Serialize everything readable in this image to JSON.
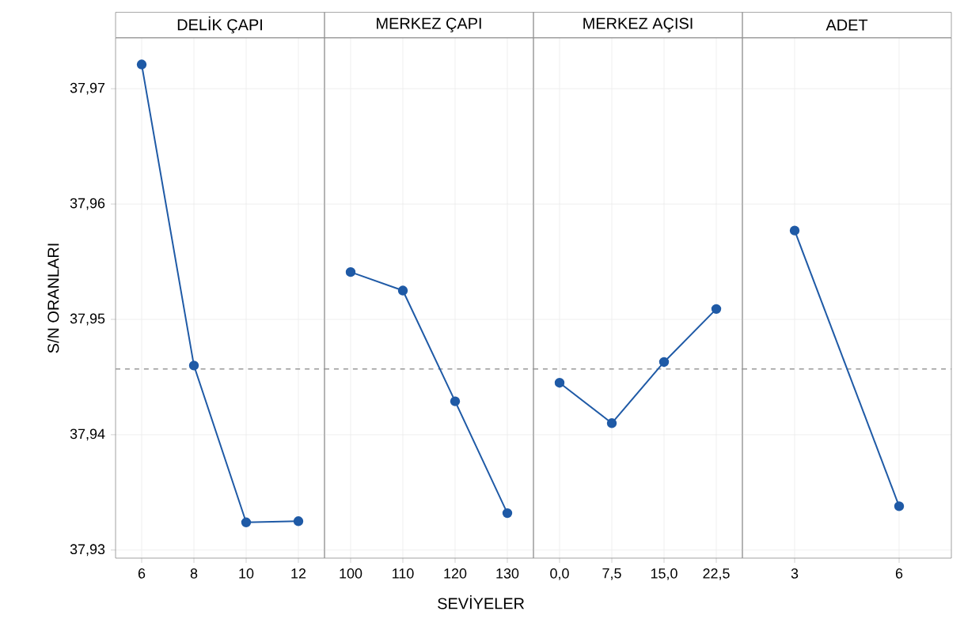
{
  "chart_data": [
    {
      "type": "line",
      "title": "DELİK ÇAPI",
      "ylabel": "S/N ORANLARI",
      "categories": [
        "6",
        "8",
        "10",
        "12"
      ],
      "series": [
        {
          "color": "#1f5aa6",
          "values": [
            37.9721,
            37.946,
            37.9324,
            37.9325
          ]
        }
      ],
      "ylim": [
        37.9293,
        37.9744
      ],
      "yticks": [
        {
          "value": 37.93,
          "label": "37,93"
        },
        {
          "value": 37.94,
          "label": "37,94"
        },
        {
          "value": 37.95,
          "label": "37,95"
        },
        {
          "value": 37.96,
          "label": "37,96"
        },
        {
          "value": 37.97,
          "label": "37,97"
        }
      ],
      "ref_lines": [
        {
          "axis": "y",
          "value": 37.9457,
          "color": "#999999",
          "line_style": "dashed"
        }
      ],
      "grid": true,
      "marker": "circle"
    },
    {
      "type": "line",
      "title": "MERKEZ ÇAPI",
      "xlabel": "SEVİYELER",
      "categories": [
        "100",
        "110",
        "120",
        "130"
      ],
      "series": [
        {
          "color": "#1f5aa6",
          "values": [
            37.9541,
            37.9525,
            37.9429,
            37.9332
          ]
        }
      ],
      "ylim": [
        37.9293,
        37.9744
      ],
      "yticks": [
        {
          "value": 37.93,
          "label": null
        },
        {
          "value": 37.94,
          "label": null
        },
        {
          "value": 37.95,
          "label": null
        },
        {
          "value": 37.96,
          "label": null
        },
        {
          "value": 37.97,
          "label": null
        }
      ],
      "tick_labels": "x",
      "ref_lines": [
        {
          "axis": "y",
          "value": 37.9457,
          "color": "#999999",
          "line_style": "dashed"
        }
      ],
      "grid": true,
      "marker": "circle"
    },
    {
      "type": "line",
      "title": "MERKEZ AÇISI",
      "categories": [
        "0,0",
        "7,5",
        "15,0",
        "22,5"
      ],
      "series": [
        {
          "color": "#1f5aa6",
          "values": [
            37.9445,
            37.941,
            37.9463,
            37.9509
          ]
        }
      ],
      "ylim": [
        37.9293,
        37.9744
      ],
      "yticks": [
        {
          "value": 37.93,
          "label": null
        },
        {
          "value": 37.94,
          "label": null
        },
        {
          "value": 37.95,
          "label": null
        },
        {
          "value": 37.96,
          "label": null
        },
        {
          "value": 37.97,
          "label": null
        }
      ],
      "tick_labels": "x",
      "ref_lines": [
        {
          "axis": "y",
          "value": 37.9457,
          "color": "#999999",
          "line_style": "dashed"
        }
      ],
      "grid": true,
      "marker": "circle"
    },
    {
      "type": "line",
      "title": "ADET",
      "categories": [
        "3",
        "6"
      ],
      "series": [
        {
          "color": "#1f5aa6",
          "values": [
            37.9577,
            37.9338
          ]
        }
      ],
      "ylim": [
        37.9293,
        37.9744
      ],
      "yticks": [
        {
          "value": 37.93,
          "label": null
        },
        {
          "value": 37.94,
          "label": null
        },
        {
          "value": 37.95,
          "label": null
        },
        {
          "value": 37.96,
          "label": null
        },
        {
          "value": 37.97,
          "label": null
        }
      ],
      "tick_labels": "x",
      "ref_lines": [
        {
          "axis": "y",
          "value": 37.9457,
          "color": "#999999",
          "line_style": "dashed"
        }
      ],
      "grid": true,
      "marker": "circle"
    }
  ]
}
